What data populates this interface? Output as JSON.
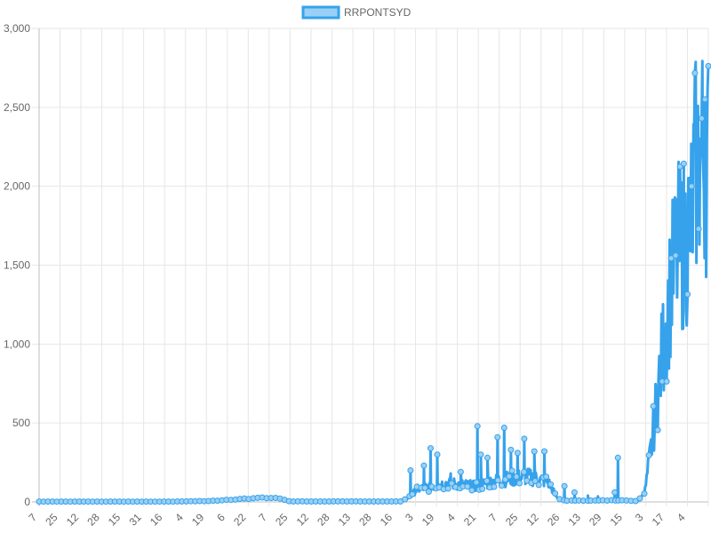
{
  "chart_data": {
    "type": "line",
    "title": "",
    "xlabel": "",
    "ylabel": "",
    "legend": {
      "position": "top",
      "entries": [
        "RRPONTSYD"
      ]
    },
    "grid": true,
    "ylim": [
      0,
      3000
    ],
    "y_ticks": [
      "0",
      "500",
      "1,000",
      "1,500",
      "2,000",
      "2,500",
      "3,000"
    ],
    "x_tick_labels": [
      "7",
      "25",
      "12",
      "28",
      "15",
      "31",
      "16",
      "4",
      "19",
      "6",
      "22",
      "7",
      "25",
      "12",
      "28",
      "13",
      "28",
      "16",
      "3",
      "19",
      "4",
      "21",
      "7",
      "25",
      "12",
      "26",
      "13",
      "29",
      "15",
      "3",
      "17",
      "4"
    ],
    "series": [
      {
        "name": "RRPONTSYD",
        "color": "#36a2eb",
        "fill_color": "#9ad0f5",
        "anchors": [
          [
            0,
            2
          ],
          [
            0.2,
            2
          ],
          [
            0.255,
            6
          ],
          [
            0.33,
            25
          ],
          [
            0.36,
            25
          ],
          [
            0.375,
            3
          ],
          [
            0.54,
            3
          ],
          [
            0.55,
            20
          ],
          [
            0.565,
            80
          ],
          [
            0.61,
            120
          ],
          [
            0.65,
            100
          ],
          [
            0.69,
            140
          ],
          [
            0.73,
            160
          ],
          [
            0.76,
            130
          ],
          [
            0.775,
            20
          ],
          [
            0.79,
            8
          ],
          [
            0.87,
            10
          ],
          [
            0.895,
            5
          ],
          [
            0.905,
            60
          ],
          [
            0.915,
            350
          ],
          [
            0.93,
            900
          ],
          [
            0.945,
            1400
          ],
          [
            0.955,
            1600
          ],
          [
            0.965,
            1650
          ],
          [
            0.975,
            1800
          ],
          [
            0.98,
            2100
          ],
          [
            0.99,
            2200
          ],
          [
            1.0,
            2150
          ]
        ],
        "spikes": [
          [
            0.555,
            200
          ],
          [
            0.575,
            230
          ],
          [
            0.585,
            340
          ],
          [
            0.595,
            300
          ],
          [
            0.615,
            180
          ],
          [
            0.63,
            190
          ],
          [
            0.655,
            480
          ],
          [
            0.66,
            300
          ],
          [
            0.67,
            280
          ],
          [
            0.685,
            410
          ],
          [
            0.695,
            470
          ],
          [
            0.705,
            330
          ],
          [
            0.715,
            310
          ],
          [
            0.725,
            400
          ],
          [
            0.74,
            320
          ],
          [
            0.755,
            320
          ],
          [
            0.785,
            100
          ],
          [
            0.8,
            60
          ],
          [
            0.82,
            40
          ],
          [
            0.835,
            35
          ],
          [
            0.86,
            60
          ],
          [
            0.865,
            280
          ],
          [
            0.962,
            1900
          ],
          [
            0.975,
            2000
          ],
          [
            0.985,
            2320
          ],
          [
            0.99,
            2430
          ],
          [
            0.995,
            2550
          ]
        ]
      }
    ]
  }
}
